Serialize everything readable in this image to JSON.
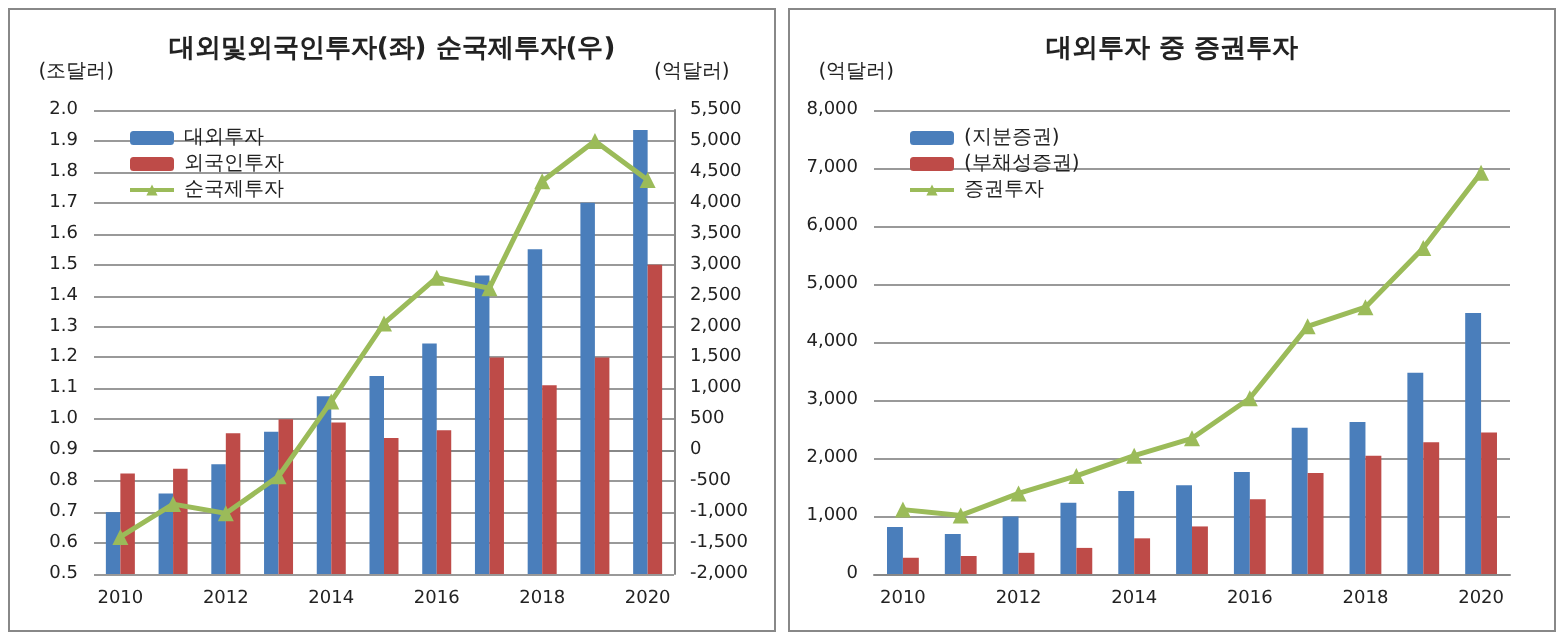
{
  "chart_data": [
    {
      "type": "bar",
      "title": "대외및외국인투자(좌) 순국제투자(우)",
      "ylabel": "(조달러)",
      "y2label": "(억달러)",
      "categories": [
        "2010",
        null,
        "2012",
        null,
        "2014",
        null,
        "2016",
        null,
        "2018",
        null,
        "2020"
      ],
      "series": [
        {
          "name": "대외투자",
          "color": "#4a7ebb",
          "values": [
            0.7,
            0.76,
            0.855,
            0.96,
            1.075,
            1.14,
            1.245,
            1.465,
            1.55,
            1.7,
            1.935
          ]
        },
        {
          "name": "외국인투자",
          "color": "#be4b48",
          "values": [
            0.825,
            0.84,
            0.955,
            1.0,
            0.99,
            0.94,
            0.965,
            1.2,
            1.11,
            1.2,
            1.5
          ]
        },
        {
          "name": "순국제투자",
          "type": "line",
          "axis": "y2",
          "color": "#9bbb59",
          "values": [
            -1400,
            -870,
            -1020,
            -420,
            790,
            2050,
            2790,
            2620,
            4350,
            5000,
            4370
          ]
        }
      ],
      "ylim": [
        0.5,
        2.0
      ],
      "yticks": [
        0.5,
        0.6,
        0.7,
        0.8,
        0.9,
        {
          "value": 1.0,
          "label": "1.0"
        },
        1.1,
        1.2,
        1.3,
        1.4,
        1.5,
        1.6,
        1.7,
        1.8,
        1.9,
        {
          "value": 2.0,
          "label": "2.0"
        }
      ],
      "y2lim": [
        -2000,
        5500
      ],
      "y2ticks": [
        {
          "value": -2000,
          "label": "-2,000"
        },
        {
          "value": -1500,
          "label": "-1,500"
        },
        {
          "value": -1000,
          "label": "-1,000"
        },
        -500,
        0,
        500,
        {
          "value": 1000,
          "label": "1,000"
        },
        {
          "value": 1500,
          "label": "1,500"
        },
        {
          "value": 2000,
          "label": "2,000"
        },
        {
          "value": 2500,
          "label": "2,500"
        },
        {
          "value": 3000,
          "label": "3,000"
        },
        {
          "value": 3500,
          "label": "3,500"
        },
        {
          "value": 4000,
          "label": "4,000"
        },
        {
          "value": 4500,
          "label": "4,500"
        },
        {
          "value": 5000,
          "label": "5,000"
        },
        {
          "value": 5500,
          "label": "5,500"
        }
      ],
      "grid": "y",
      "legend": "top left",
      "marker": "triangle"
    },
    {
      "type": "bar",
      "title": "대외투자 중 증권투자",
      "ylabel": "(억달러)",
      "categories": [
        "2010",
        null,
        "2012",
        null,
        "2014",
        null,
        "2016",
        null,
        "2018",
        null,
        "2020"
      ],
      "series": [
        {
          "name": "(지분증권)",
          "color": "#4a7ebb",
          "values": [
            810,
            690,
            990,
            1230,
            1430,
            1530,
            1760,
            2520,
            2620,
            3470,
            4500
          ]
        },
        {
          "name": "(부채성증권)",
          "color": "#be4b48",
          "values": [
            280,
            310,
            365,
            450,
            615,
            820,
            1290,
            1740,
            2040,
            2270,
            2440
          ]
        },
        {
          "name": "증권투자",
          "type": "line",
          "color": "#9bbb59",
          "values": [
            1110,
            1010,
            1390,
            1690,
            2040,
            2340,
            3030,
            4270,
            4600,
            5620,
            6920
          ]
        }
      ],
      "ylim": [
        0,
        8000
      ],
      "yticks": [
        0,
        {
          "value": 1000,
          "label": "1,000"
        },
        {
          "value": 2000,
          "label": "2,000"
        },
        {
          "value": 3000,
          "label": "3,000"
        },
        {
          "value": 4000,
          "label": "4,000"
        },
        {
          "value": 5000,
          "label": "5,000"
        },
        {
          "value": 6000,
          "label": "6,000"
        },
        {
          "value": 7000,
          "label": "7,000"
        },
        {
          "value": 8000,
          "label": "8,000"
        }
      ],
      "grid": "y",
      "legend": "top left",
      "marker": "triangle"
    }
  ]
}
